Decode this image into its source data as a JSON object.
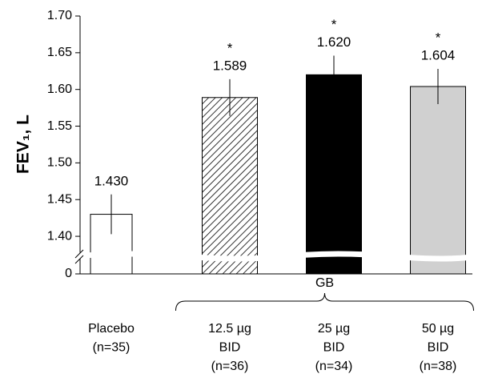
{
  "chart_data": {
    "type": "bar",
    "y_label": "FEV₁, L",
    "categories": [
      [
        "Placebo",
        "(n=35)"
      ],
      [
        "12.5 µg",
        "BID",
        "(n=36)"
      ],
      [
        "25 µg",
        "BID",
        "(n=34)"
      ],
      [
        "50 µg",
        "BID",
        "(n=38)"
      ]
    ],
    "values": [
      1.43,
      1.589,
      1.62,
      1.604
    ],
    "value_labels": [
      "1.430",
      "1.589",
      "1.620",
      "1.604"
    ],
    "errors": [
      0.027,
      0.025,
      0.026,
      0.024
    ],
    "colors": [
      "#ffffff",
      "#ffffff",
      "#000000",
      "#d0d0d0"
    ],
    "hatched": [
      false,
      true,
      false,
      false
    ],
    "significance": [
      {
        "index": 1,
        "text": "*"
      },
      {
        "index": 2,
        "text": "*"
      },
      {
        "index": 3,
        "text": "*"
      }
    ],
    "group": {
      "label": "GB",
      "from": 1,
      "to": 3
    },
    "ylim": [
      1.375,
      1.7
    ],
    "axis_break": true,
    "yticks": [
      0,
      {
        "value": 1.4,
        "label": "1.40"
      },
      {
        "value": 1.45,
        "label": "1.45"
      },
      {
        "value": 1.5,
        "label": "1.50"
      },
      {
        "value": 1.55,
        "label": "1.55"
      },
      {
        "value": 1.6,
        "label": "1.60"
      },
      {
        "value": 1.65,
        "label": "1.65"
      },
      {
        "value": 1.7,
        "label": "1.70"
      }
    ]
  }
}
